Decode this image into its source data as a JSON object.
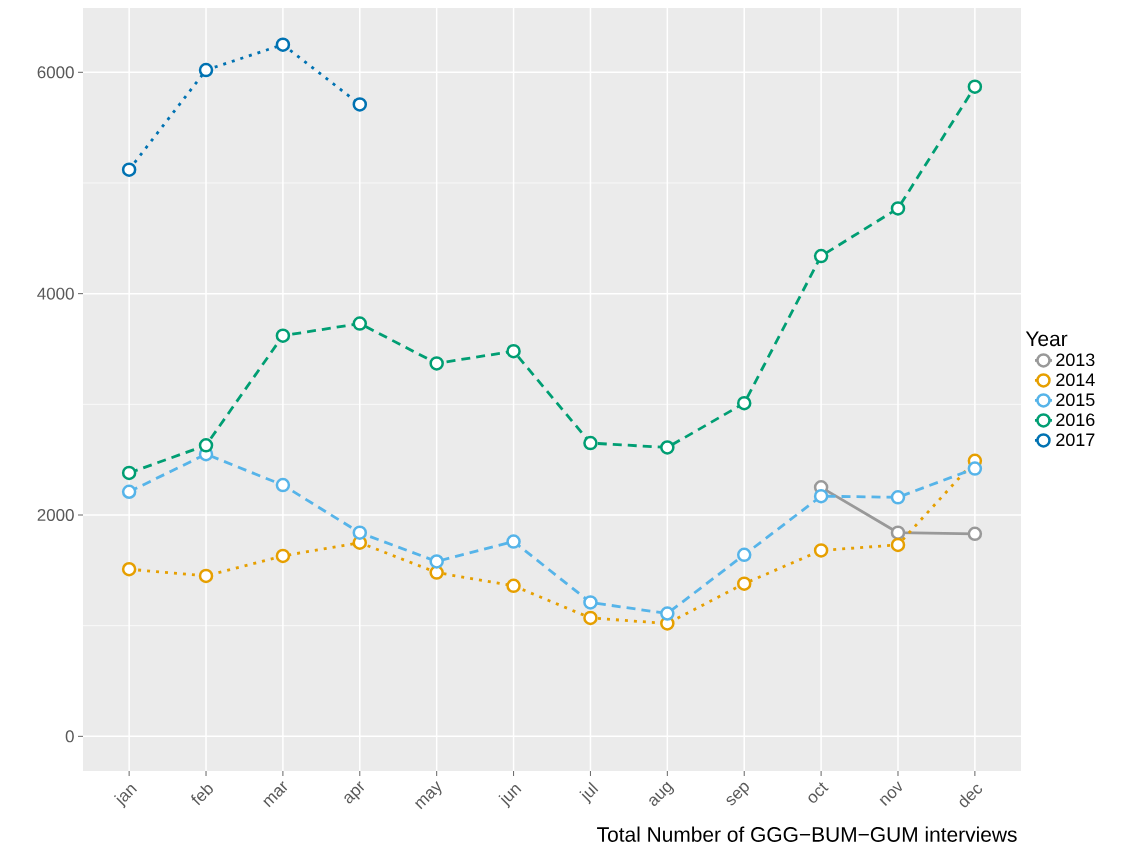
{
  "chart_data": {
    "type": "line",
    "xlabel": "Total Number of GGG−BUM−GUM interviews",
    "legend_title": "Year",
    "categories": [
      "jan",
      "feb",
      "mar",
      "apr",
      "may",
      "jun",
      "jul",
      "aug",
      "sep",
      "oct",
      "nov",
      "dec"
    ],
    "series": [
      {
        "name": "2013",
        "color": "#999999",
        "line_style": "solid",
        "values": [
          null,
          null,
          null,
          null,
          null,
          null,
          null,
          null,
          null,
          2250,
          1840,
          1830
        ]
      },
      {
        "name": "2014",
        "color": "#e69f00",
        "line_style": "dotted",
        "values": [
          1510,
          1450,
          1630,
          1750,
          1480,
          1360,
          1070,
          1020,
          1380,
          1680,
          1730,
          2490
        ]
      },
      {
        "name": "2015",
        "color": "#56b4e9",
        "line_style": "dashed",
        "values": [
          2210,
          2550,
          2270,
          1840,
          1580,
          1760,
          1210,
          1110,
          1640,
          2170,
          2160,
          2420
        ]
      },
      {
        "name": "2016",
        "color": "#009e73",
        "line_style": "dashed",
        "values": [
          2380,
          2630,
          3620,
          3730,
          3370,
          3480,
          2650,
          2610,
          3010,
          4340,
          4770,
          5870
        ]
      },
      {
        "name": "2017",
        "color": "#0072b2",
        "line_style": "dotted",
        "values": [
          5120,
          6020,
          6250,
          5710,
          null,
          null,
          null,
          null,
          null,
          null,
          null,
          null
        ]
      }
    ],
    "ylim": [
      -313,
      6581
    ],
    "yticks": [
      0,
      2000,
      4000,
      6000
    ],
    "grid": true,
    "legend": "right",
    "marker": "circle"
  }
}
